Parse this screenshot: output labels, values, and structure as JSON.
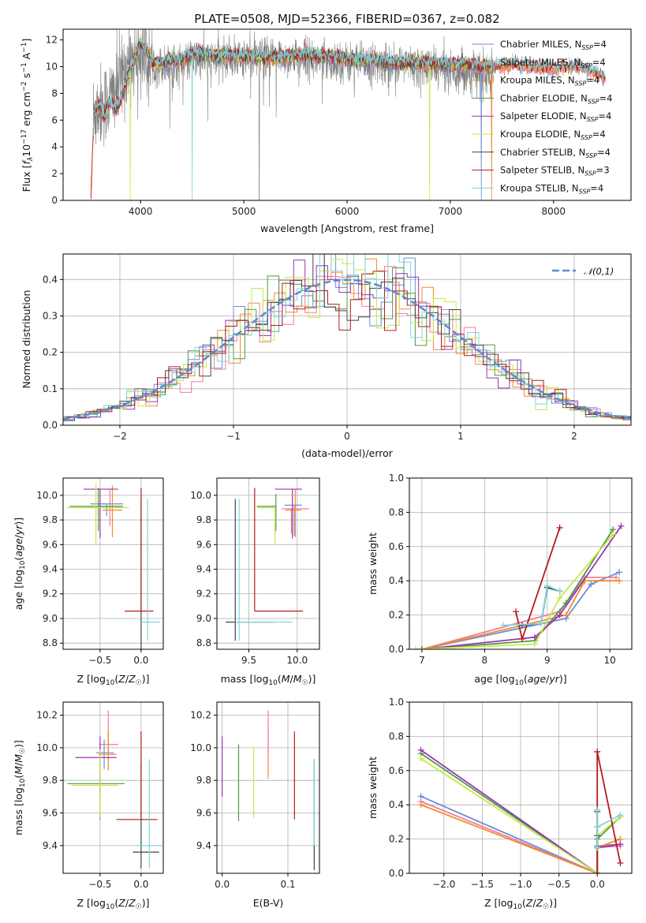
{
  "figure": {
    "title": "PLATE=0508, MJD=52366, FIBERID=0367, z=0.082"
  },
  "models": [
    {
      "name": "Chabrier MILES, N",
      "nssp": "=4",
      "color": "#6b8fd6"
    },
    {
      "name": "Salpeter MILES, N",
      "nssp": "=4",
      "color": "#f07f95"
    },
    {
      "name": "Kroupa MILES, N",
      "nssp": "=4",
      "color": "#f08a2a"
    },
    {
      "name": "Chabrier ELODIE, N",
      "nssp": "=4",
      "color": "#4f9a44"
    },
    {
      "name": "Salpeter ELODIE, N",
      "nssp": "=4",
      "color": "#9a35b5"
    },
    {
      "name": "Kroupa ELODIE, N",
      "nssp": "=4",
      "color": "#c6e84a"
    },
    {
      "name": "Chabrier STELIB, N",
      "nssp": "=4",
      "color": "#444444"
    },
    {
      "name": "Salpeter STELIB, N",
      "nssp": "=3",
      "color": "#b31d1d"
    },
    {
      "name": "Kroupa STELIB, N",
      "nssp": "=4",
      "color": "#7fd6dc"
    }
  ],
  "legend_sub": "SSP",
  "chart_data": [
    {
      "id": "spectrum",
      "type": "line",
      "xlabel": "wavelength [Angstrom, rest frame]",
      "ylabel": "Flux [f_λ10^-17 erg cm^-2 s^-1 A^-1]",
      "xlim": [
        3250,
        8750
      ],
      "ylim": [
        0,
        12.8
      ],
      "xticks": [
        4000,
        5000,
        6000,
        7000,
        8000
      ],
      "yticks": [
        0,
        2,
        4,
        6,
        8,
        10,
        12
      ],
      "data_color": "#808080",
      "data_envelope_x": [
        3540,
        3600,
        3700,
        3800,
        3900,
        4000,
        4100,
        4300,
        4500,
        5000,
        5500,
        6000,
        6500,
        7000,
        7400
      ],
      "data_envelope_y": [
        6.5,
        7.0,
        7.5,
        9.0,
        10.5,
        11.0,
        10.2,
        10.0,
        10.5,
        10.6,
        10.7,
        10.3,
        10.1,
        9.8,
        9.2
      ],
      "model_continuum_x": [
        3520,
        3550,
        3600,
        3650,
        3700,
        3750,
        3800,
        3850,
        3900,
        3950,
        4000,
        4050,
        4100,
        4200,
        4300,
        4400,
        4500,
        4700,
        5000,
        5300,
        5600,
        6000,
        6300,
        6600,
        7000,
        7200,
        7400,
        7600,
        7800,
        8000,
        8200,
        8400,
        8500
      ],
      "model_continuum_y": [
        0.2,
        6.8,
        7.2,
        6.2,
        7.4,
        6.9,
        7.3,
        8.5,
        9.8,
        10.6,
        11.8,
        11.3,
        10.4,
        10.2,
        10.6,
        10.5,
        11.0,
        10.9,
        10.8,
        10.7,
        10.9,
        10.6,
        10.4,
        10.3,
        10.2,
        10.1,
        10.0,
        10.2,
        10.0,
        9.9,
        10.1,
        9.6,
        9.2
      ],
      "dropouts": [
        {
          "x": 3900,
          "model": 5
        },
        {
          "x": 4500,
          "model": 8
        },
        {
          "x": 6800,
          "model": 5
        },
        {
          "x": 7300,
          "model": 0
        },
        {
          "x": 7400,
          "model": 2
        },
        {
          "x": 5150,
          "model": -1
        }
      ]
    },
    {
      "id": "residuals",
      "type": "step",
      "xlabel": "(data-model)/error",
      "ylabel": "Normed distribution",
      "xlim": [
        -2.5,
        2.5
      ],
      "ylim": [
        0,
        0.47
      ],
      "xticks": [
        -2,
        -1,
        0,
        1,
        2
      ],
      "yticks": [
        0.0,
        0.1,
        0.2,
        0.3,
        0.4
      ],
      "bin_width": 0.1,
      "reference": {
        "label": "𝒩(0,1)",
        "color": "#5b8bd9"
      }
    },
    {
      "id": "age_vs_Z",
      "type": "errorbar",
      "xlabel": "Z [log10(Z/Z☉)]",
      "ylabel": "age [log10(age/yr)]",
      "xlim": [
        -0.95,
        0.27
      ],
      "ylim": [
        8.75,
        10.14
      ],
      "xticks": [
        -0.5,
        0.0
      ],
      "yticks": [
        8.8,
        9.0,
        9.2,
        9.4,
        9.6,
        9.8,
        10.0
      ],
      "points": [
        {
          "x": -0.42,
          "xerr": [
            0.2,
            0.2
          ],
          "y": 9.93,
          "yerr": [
            0.1,
            0.0
          ],
          "model": 0
        },
        {
          "x": -0.38,
          "xerr": [
            0.18,
            0.15
          ],
          "y": 9.9,
          "yerr": [
            0.15,
            0.15
          ],
          "model": 1
        },
        {
          "x": -0.35,
          "xerr": [
            0.12,
            0.12
          ],
          "y": 9.88,
          "yerr": [
            0.22,
            0.2
          ],
          "model": 2
        },
        {
          "x": -0.52,
          "xerr": [
            0.35,
            0.3
          ],
          "y": 9.91,
          "yerr": [
            0.2,
            0.15
          ],
          "model": 3
        },
        {
          "x": -0.5,
          "xerr": [
            0.2,
            0.22
          ],
          "y": 10.05,
          "yerr": [
            0.4,
            0.0
          ],
          "model": 4
        },
        {
          "x": -0.55,
          "xerr": [
            0.35,
            0.4
          ],
          "y": 9.9,
          "yerr": [
            0.3,
            0.2
          ],
          "model": 5
        },
        {
          "x": 0.0,
          "xerr": [
            0.0,
            0.0
          ],
          "y": 9.0,
          "yerr": [
            0.25,
            0.97
          ],
          "model": 6
        },
        {
          "x": 0.0,
          "xerr": [
            0.2,
            0.15
          ],
          "y": 9.06,
          "yerr": [
            0.0,
            1.0
          ],
          "model": 7
        },
        {
          "x": 0.08,
          "xerr": [
            0.08,
            0.15
          ],
          "y": 8.97,
          "yerr": [
            0.15,
            1.0
          ],
          "model": 8
        }
      ]
    },
    {
      "id": "age_vs_mass",
      "type": "errorbar",
      "xlabel": "mass [log10(M/M☉)]",
      "ylabel": "",
      "xlim": [
        9.17,
        10.23
      ],
      "ylim": [
        8.75,
        10.14
      ],
      "xticks": [
        9.5,
        10.0
      ],
      "yticks": [
        8.8,
        9.0,
        9.2,
        9.4,
        9.6,
        9.8,
        10.0
      ],
      "points": [
        {
          "x": 9.97,
          "xerr": [
            0.1,
            0.08
          ],
          "y": 9.92,
          "yerr": [
            0.25,
            0.0
          ],
          "model": 0
        },
        {
          "x": 9.94,
          "xerr": [
            0.1,
            0.18
          ],
          "y": 9.89,
          "yerr": [
            0.2,
            0.0
          ],
          "model": 1
        },
        {
          "x": 9.98,
          "xerr": [
            0.1,
            0.06
          ],
          "y": 9.88,
          "yerr": [
            0.22,
            0.17
          ],
          "model": 2
        },
        {
          "x": 9.78,
          "xerr": [
            0.2,
            0.0
          ],
          "y": 9.91,
          "yerr": [
            0.2,
            0.1
          ],
          "model": 3
        },
        {
          "x": 9.95,
          "xerr": [
            0.18,
            0.1
          ],
          "y": 10.05,
          "yerr": [
            0.4,
            0.0
          ],
          "model": 4
        },
        {
          "x": 9.77,
          "xerr": [
            0.18,
            0.0
          ],
          "y": 9.9,
          "yerr": [
            0.3,
            0.0
          ],
          "model": 5
        },
        {
          "x": 9.36,
          "xerr": [
            0.1,
            0.4
          ],
          "y": 8.97,
          "yerr": [
            0.15,
            1.0
          ],
          "model": 6
        },
        {
          "x": 9.56,
          "xerr": [
            0.0,
            0.5
          ],
          "y": 9.06,
          "yerr": [
            0.0,
            1.0
          ],
          "model": 7
        },
        {
          "x": 9.4,
          "xerr": [
            0.04,
            0.55
          ],
          "y": 8.97,
          "yerr": [
            0.15,
            1.0
          ],
          "model": 8
        }
      ]
    },
    {
      "id": "mass_weight_vs_age",
      "type": "line",
      "xlabel": "age [log10(age/yr)]",
      "ylabel": "mass weight",
      "xlim": [
        6.8,
        10.35
      ],
      "ylim": [
        0,
        1.0
      ],
      "xticks": [
        7,
        8,
        9,
        10
      ],
      "yticks": [
        0.0,
        0.2,
        0.4,
        0.6,
        0.8,
        1.0
      ],
      "series": [
        {
          "model": 0,
          "x": [
            7.0,
            9.3,
            9.7,
            10.15
          ],
          "y": [
            0.0,
            0.18,
            0.38,
            0.45
          ]
        },
        {
          "model": 1,
          "x": [
            7.0,
            9.2,
            9.6,
            10.1
          ],
          "y": [
            0.0,
            0.22,
            0.42,
            0.42
          ]
        },
        {
          "model": 2,
          "x": [
            7.0,
            9.3,
            9.6,
            10.15
          ],
          "y": [
            0.0,
            0.2,
            0.4,
            0.4
          ]
        },
        {
          "model": 3,
          "x": [
            7.0,
            8.8,
            9.3,
            10.05
          ],
          "y": [
            0.0,
            0.05,
            0.27,
            0.7
          ]
        },
        {
          "model": 4,
          "x": [
            7.0,
            8.8,
            9.2,
            10.18
          ],
          "y": [
            0.0,
            0.07,
            0.2,
            0.72
          ]
        },
        {
          "model": 5,
          "x": [
            6.9,
            8.8,
            9.2,
            10.05
          ],
          "y": [
            0.0,
            0.03,
            0.3,
            0.67
          ]
        },
        {
          "model": 6,
          "x": [
            8.6,
            8.9,
            9.0,
            9.2
          ],
          "y": [
            0.14,
            0.15,
            0.36,
            0.34
          ]
        },
        {
          "model": 7,
          "x": [
            8.5,
            8.6,
            9.2
          ],
          "y": [
            0.22,
            0.06,
            0.71
          ]
        },
        {
          "model": 8,
          "x": [
            8.3,
            8.9,
            9.0,
            9.2
          ],
          "y": [
            0.14,
            0.15,
            0.37,
            0.34
          ]
        }
      ]
    },
    {
      "id": "mass_vs_Z",
      "type": "errorbar",
      "xlabel": "Z [log10(Z/Z☉)]",
      "ylabel": "mass [log10(M/M☉)]",
      "xlim": [
        -0.95,
        0.27
      ],
      "ylim": [
        9.23,
        10.28
      ],
      "xticks": [
        -0.5,
        0.0
      ],
      "yticks": [
        9.4,
        9.6,
        9.8,
        10.0,
        10.2
      ],
      "points": [
        {
          "x": -0.45,
          "xerr": [
            0.1,
            0.12
          ],
          "y": 9.97,
          "yerr": [
            0.1,
            0.08
          ],
          "model": 0
        },
        {
          "x": -0.4,
          "xerr": [
            0.1,
            0.12
          ],
          "y": 10.02,
          "yerr": [
            0.1,
            0.21
          ],
          "model": 1
        },
        {
          "x": -0.4,
          "xerr": [
            0.12,
            0.1
          ],
          "y": 9.96,
          "yerr": [
            0.1,
            0.15
          ],
          "model": 2
        },
        {
          "x": -0.5,
          "xerr": [
            0.4,
            0.3
          ],
          "y": 9.78,
          "yerr": [
            0.22,
            0.22
          ],
          "model": 3
        },
        {
          "x": -0.5,
          "xerr": [
            0.3,
            0.2
          ],
          "y": 9.94,
          "yerr": [
            0.25,
            0.13
          ],
          "model": 4
        },
        {
          "x": -0.5,
          "xerr": [
            0.35,
            0.22
          ],
          "y": 9.77,
          "yerr": [
            0.2,
            0.22
          ],
          "model": 5
        },
        {
          "x": 0.0,
          "xerr": [
            0.1,
            0.22
          ],
          "y": 9.36,
          "yerr": [
            0.1,
            0.55
          ],
          "model": 6
        },
        {
          "x": 0.0,
          "xerr": [
            0.3,
            0.2
          ],
          "y": 9.56,
          "yerr": [
            0.0,
            0.54
          ],
          "model": 7
        },
        {
          "x": 0.1,
          "xerr": [
            0.15,
            0.15
          ],
          "y": 9.4,
          "yerr": [
            0.14,
            0.53
          ],
          "model": 8
        }
      ]
    },
    {
      "id": "mass_vs_EBV",
      "type": "errorbar",
      "xlabel": "E(B-V)",
      "ylabel": "",
      "xlim": [
        -0.008,
        0.148
      ],
      "ylim": [
        9.23,
        10.28
      ],
      "xticks": [
        0.0,
        0.1
      ],
      "yticks": [
        9.4,
        9.6,
        9.8,
        10.0,
        10.2
      ],
      "points": [
        {
          "x": 0.0,
          "xerr": [
            0,
            0
          ],
          "y": 9.9,
          "yerr": [
            0.2,
            0.17
          ],
          "model": 4
        },
        {
          "x": 0.025,
          "xerr": [
            0,
            0
          ],
          "y": 9.8,
          "yerr": [
            0.25,
            0.22
          ],
          "model": 3
        },
        {
          "x": 0.048,
          "xerr": [
            0,
            0
          ],
          "y": 9.77,
          "yerr": [
            0.2,
            0.23
          ],
          "model": 5
        },
        {
          "x": 0.07,
          "xerr": [
            0,
            0
          ],
          "y": 9.98,
          "yerr": [
            0.17,
            0.14
          ],
          "model": 2
        },
        {
          "x": 0.07,
          "xerr": [
            0,
            0
          ],
          "y": 10.1,
          "yerr": [
            0.15,
            0.13
          ],
          "model": 1
        },
        {
          "x": 0.11,
          "xerr": [
            0,
            0
          ],
          "y": 9.82,
          "yerr": [
            0.26,
            0.28
          ],
          "model": 7
        },
        {
          "x": 0.14,
          "xerr": [
            0,
            0
          ],
          "y": 9.6,
          "yerr": [
            0.35,
            0.33
          ],
          "model": 6
        },
        {
          "x": 0.14,
          "xerr": [
            0,
            0
          ],
          "y": 9.6,
          "yerr": [
            0.2,
            0.33
          ],
          "model": 8
        }
      ]
    },
    {
      "id": "mass_weight_vs_Z",
      "type": "line",
      "xlabel": "Z [log10(Z/Z☉)]",
      "ylabel": "mass weight",
      "xlim": [
        -2.45,
        0.45
      ],
      "ylim": [
        0,
        1.0
      ],
      "xticks": [
        -2.0,
        -1.5,
        -1.0,
        -0.5,
        0.0
      ],
      "yticks": [
        0.0,
        0.2,
        0.4,
        0.6,
        0.8,
        1.0
      ],
      "series": [
        {
          "model": 0,
          "x": [
            -2.3,
            0.0,
            0.0,
            0.3
          ],
          "y": [
            0.45,
            0.0,
            0.16,
            0.17
          ]
        },
        {
          "model": 1,
          "x": [
            -2.3,
            0.0,
            0.0,
            0.3
          ],
          "y": [
            0.42,
            0.0,
            0.15,
            0.16
          ]
        },
        {
          "model": 2,
          "x": [
            -2.3,
            0.0,
            0.0,
            0.3
          ],
          "y": [
            0.4,
            0.0,
            0.15,
            0.2
          ]
        },
        {
          "model": 3,
          "x": [
            -2.3,
            0.0,
            0.0,
            0.3
          ],
          "y": [
            0.7,
            0.0,
            0.2,
            0.33
          ]
        },
        {
          "model": 4,
          "x": [
            -2.3,
            0.0,
            0.0,
            0.3
          ],
          "y": [
            0.72,
            0.0,
            0.15,
            0.17
          ]
        },
        {
          "model": 5,
          "x": [
            -2.3,
            0.0,
            0.0,
            0.3
          ],
          "y": [
            0.67,
            0.0,
            0.22,
            0.33
          ]
        },
        {
          "model": 6,
          "x": [
            0.0,
            0.0,
            0.0,
            0.0
          ],
          "y": [
            0.15,
            0.22,
            0.36,
            0.27
          ]
        },
        {
          "model": 7,
          "x": [
            0.0,
            0.0,
            0.3
          ],
          "y": [
            0.0,
            0.71,
            0.06
          ]
        },
        {
          "model": 8,
          "x": [
            0.0,
            0.0,
            0.0,
            0.3
          ],
          "y": [
            0.15,
            0.37,
            0.27,
            0.34
          ]
        }
      ]
    }
  ]
}
